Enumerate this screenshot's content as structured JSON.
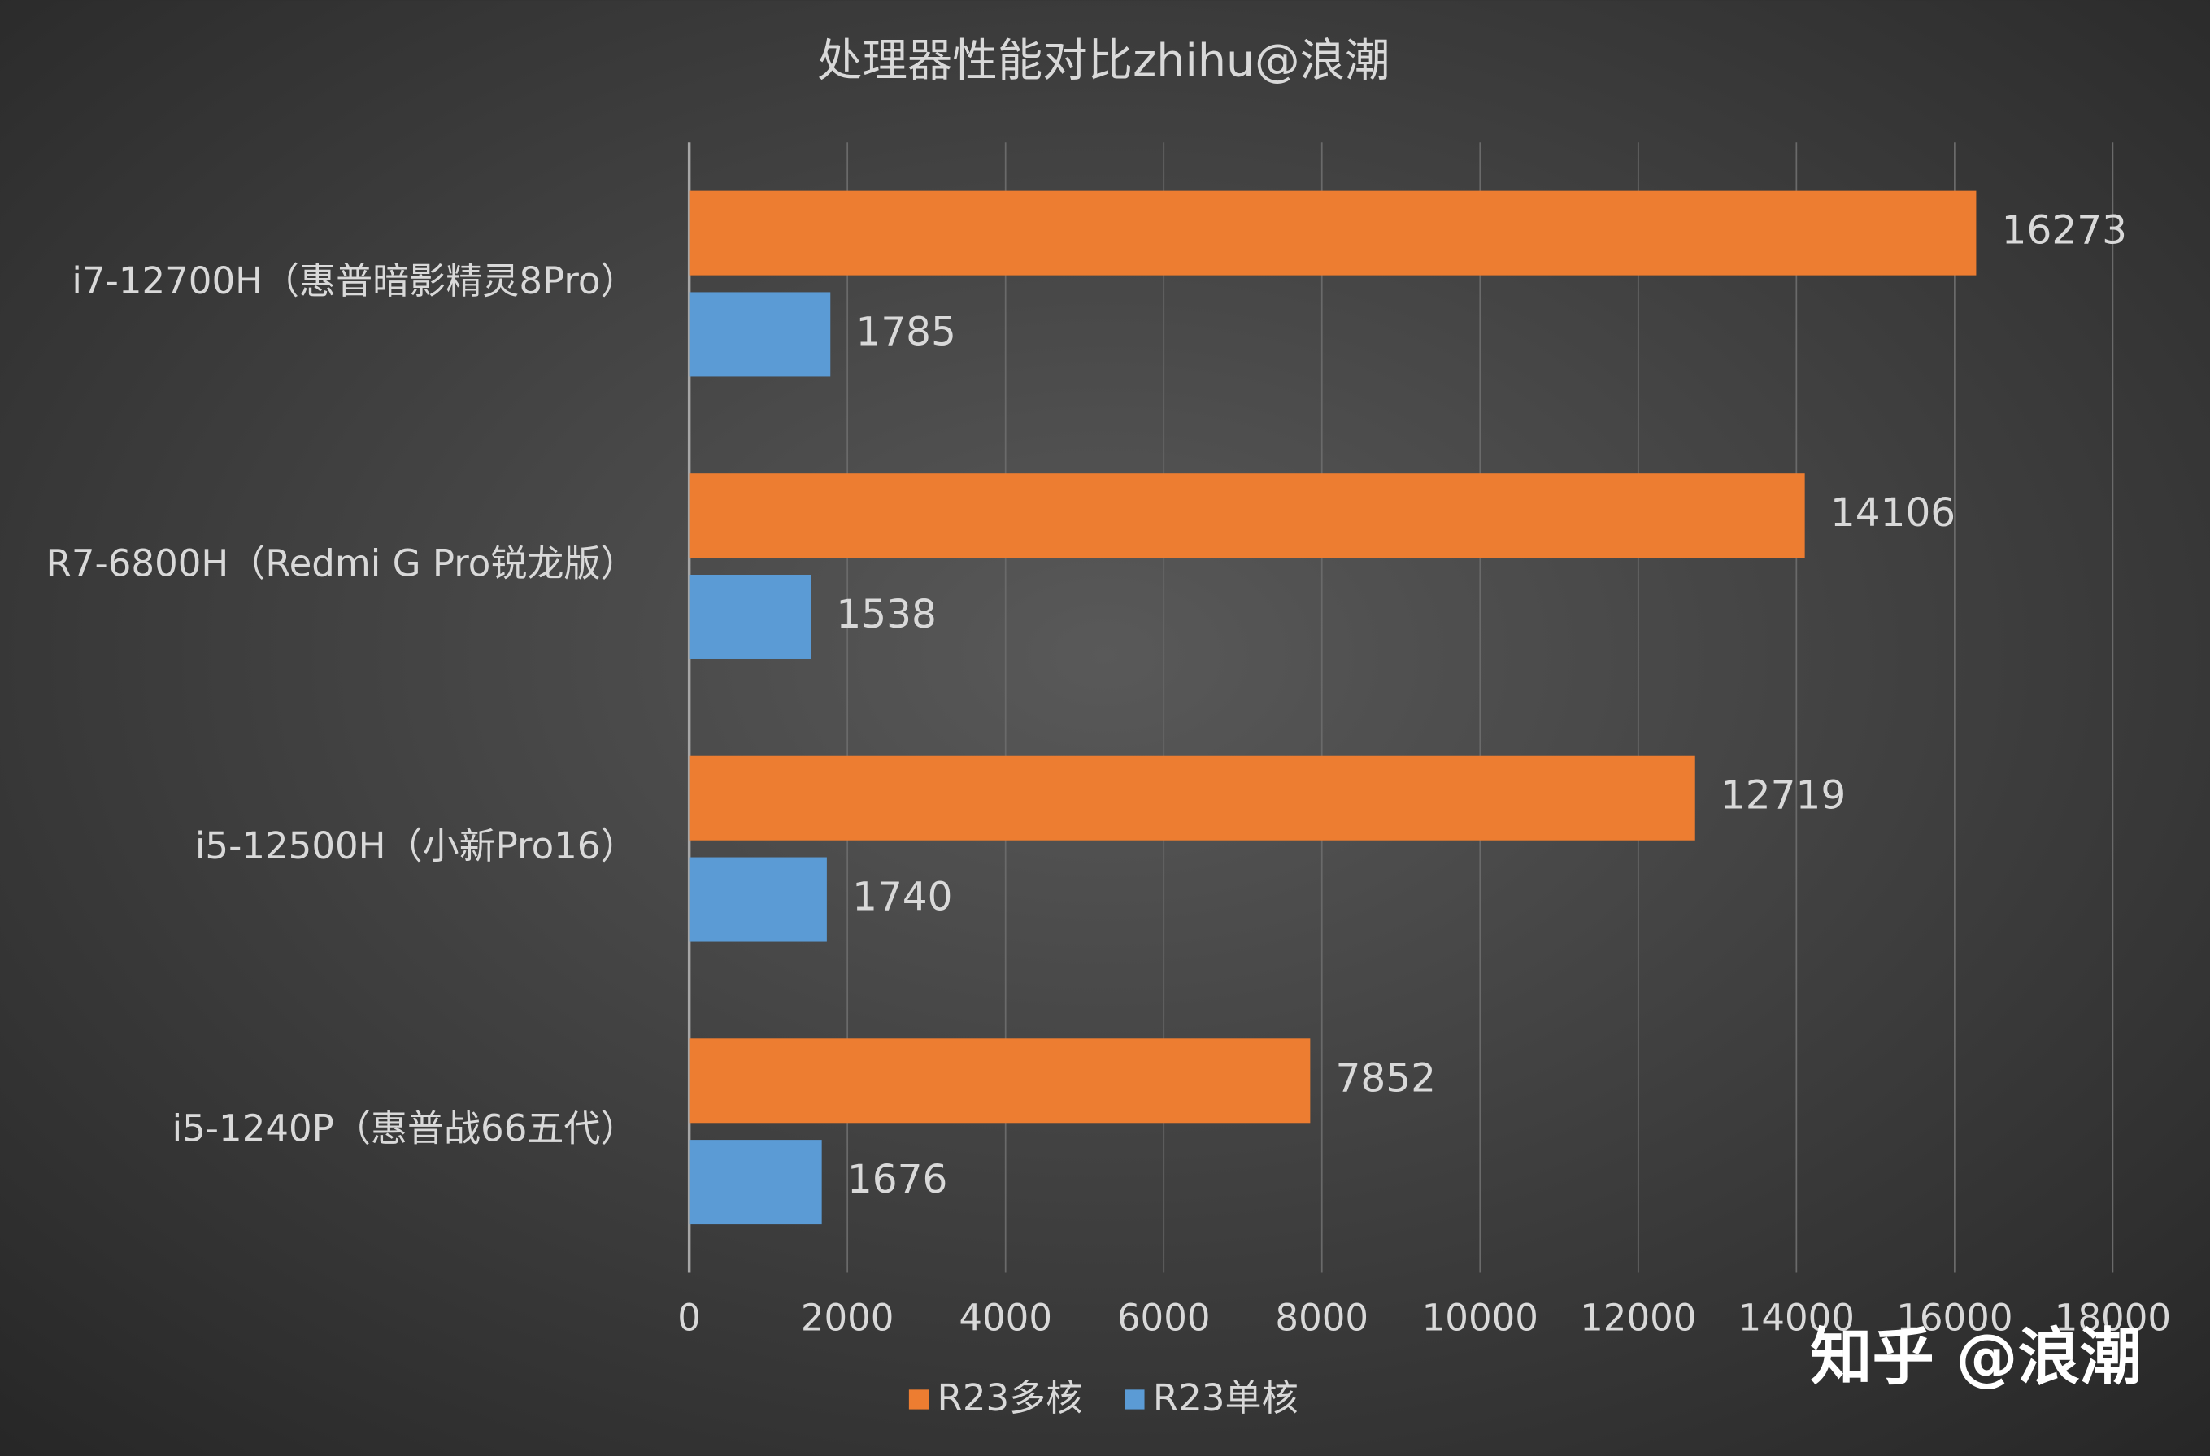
{
  "chart_data": {
    "type": "bar",
    "orientation": "horizontal",
    "title": "处理器性能对比zhihu@浪潮",
    "categories": [
      "i7-12700H（惠普暗影精灵8Pro）",
      "R7-6800H（Redmi G Pro锐龙版）",
      "i5-12500H（小新Pro16）",
      "i5-1240P（惠普战66五代）"
    ],
    "series": [
      {
        "name": "R23多核",
        "color": "#ed7d31",
        "values": [
          16273,
          14106,
          12719,
          7852
        ]
      },
      {
        "name": "R23单核",
        "color": "#5b9bd5",
        "values": [
          1785,
          1538,
          1740,
          1676
        ]
      }
    ],
    "xlim": [
      0,
      18000
    ],
    "xticks": [
      0,
      2000,
      4000,
      6000,
      8000,
      10000,
      12000,
      14000,
      16000,
      18000
    ],
    "grid": true,
    "legend": "bottom",
    "watermark": "知乎 @浪潮"
  }
}
